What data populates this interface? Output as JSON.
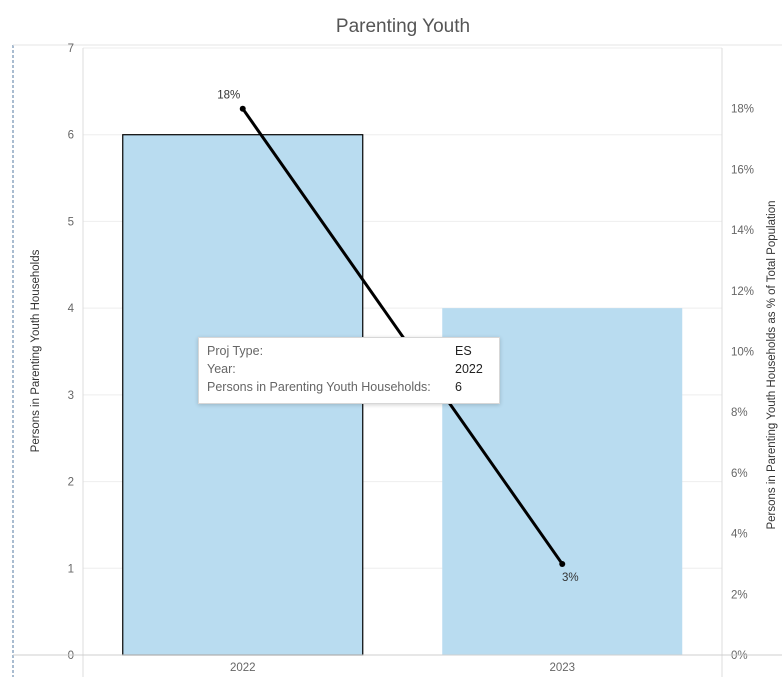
{
  "chart_data": {
    "type": "bar",
    "title": "Parenting Youth",
    "categories": [
      "2022",
      "2023"
    ],
    "series": [
      {
        "name": "Persons in Parenting Youth Households",
        "type": "bar",
        "axis": "left",
        "values": [
          6,
          4
        ]
      },
      {
        "name": "Persons in Parenting Youth Households as % of Total Population",
        "type": "line",
        "axis": "right",
        "values": [
          18,
          3
        ],
        "labels": [
          "18%",
          "3%"
        ]
      }
    ],
    "ylabel": "Persons in Parenting Youth Households",
    "ylim": [
      0,
      7
    ],
    "yticks": [
      "0",
      "1",
      "2",
      "3",
      "4",
      "5",
      "6",
      "7"
    ],
    "y2label": "Persons in Parenting Youth Households as % of Total Population",
    "y2lim": [
      0,
      20
    ],
    "y2ticks": [
      "0%",
      "2%",
      "4%",
      "6%",
      "8%",
      "10%",
      "12%",
      "14%",
      "16%",
      "18%"
    ],
    "grid": true,
    "colors": {
      "bar": "#b9dcf0",
      "bar_selected_border": "#000000",
      "line": "#000000"
    }
  },
  "tooltip": {
    "rows": [
      {
        "key": "Proj Type:",
        "value": "ES"
      },
      {
        "key": "Year:",
        "value": "2022"
      },
      {
        "key": "Persons in Parenting Youth Households:",
        "value": "6"
      }
    ]
  }
}
